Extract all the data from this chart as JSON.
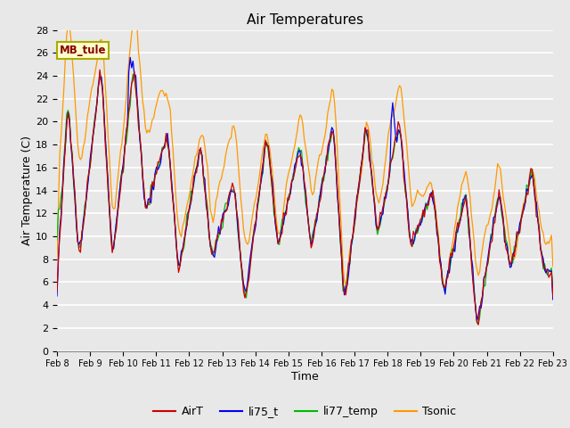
{
  "title": "Air Temperatures",
  "xlabel": "Time",
  "ylabel": "Air Temperature (C)",
  "annotation": "MB_tule",
  "ylim": [
    0,
    28
  ],
  "bg_color": "#e8e8e8",
  "series_colors": {
    "AirT": "#cc0000",
    "li75_t": "#0000ee",
    "li77_temp": "#00bb00",
    "Tsonic": "#ff9900"
  },
  "x_tick_labels": [
    "Feb 8",
    "Feb 9",
    "Feb 10",
    "Feb 11",
    "Feb 12",
    "Feb 13",
    "Feb 14",
    "Feb 15",
    "Feb 16",
    "Feb 17",
    "Feb 18",
    "Feb 19",
    "Feb 20",
    "Feb 21",
    "Feb 22",
    "Feb 23"
  ],
  "x_tick_positions": [
    0,
    24,
    48,
    72,
    96,
    120,
    144,
    168,
    192,
    216,
    240,
    264,
    288,
    312,
    336,
    360
  ],
  "yticks": [
    0,
    2,
    4,
    6,
    8,
    10,
    12,
    14,
    16,
    18,
    20,
    22,
    24,
    26,
    28
  ],
  "figsize": [
    6.4,
    4.8
  ],
  "dpi": 100
}
